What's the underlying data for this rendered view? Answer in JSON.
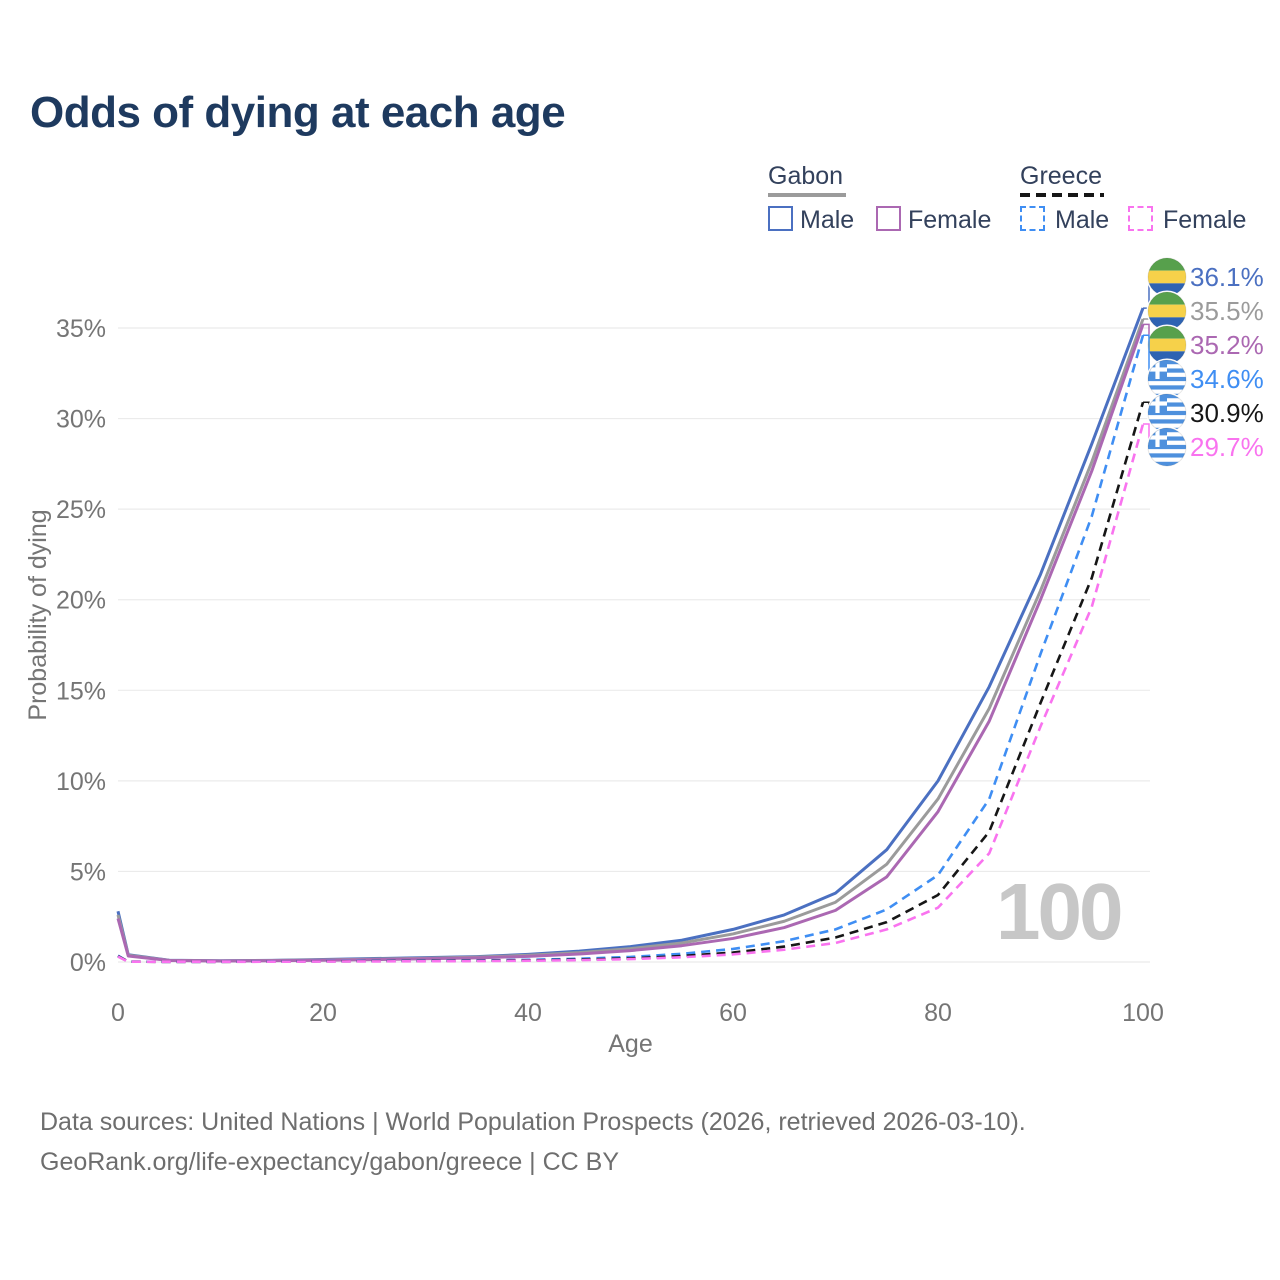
{
  "title": "Odds of dying at each age",
  "legend": {
    "groups": [
      {
        "label": "Gabon",
        "line_style": "solid",
        "line_color": "#9b9b9b",
        "items": [
          {
            "label": "Male",
            "color": "#4b70c1",
            "dashed": false
          },
          {
            "label": "Female",
            "color": "#ab68b2",
            "dashed": false
          }
        ]
      },
      {
        "label": "Greece",
        "line_style": "dashed",
        "line_color": "#161616",
        "items": [
          {
            "label": "Male",
            "color": "#3f8ef3",
            "dashed": true
          },
          {
            "label": "Female",
            "color": "#f973ef",
            "dashed": true
          }
        ]
      }
    ]
  },
  "chart_data": {
    "type": "line",
    "title": "Odds of dying at each age",
    "xlabel": "Age",
    "ylabel": "Probability of dying",
    "watermark": "100",
    "grid": "horizontal",
    "xlim": [
      0,
      100
    ],
    "ylim_percent": [
      0,
      38
    ],
    "x_ticks": [
      0,
      20,
      40,
      60,
      80,
      100
    ],
    "y_tick_values": [
      0,
      5,
      10,
      15,
      20,
      25,
      30,
      35
    ],
    "y_ticks": [
      "0%",
      "5%",
      "10%",
      "15%",
      "20%",
      "25%",
      "30%",
      "35%"
    ],
    "x": [
      0,
      1,
      5,
      10,
      15,
      20,
      25,
      30,
      35,
      40,
      45,
      50,
      55,
      60,
      65,
      70,
      75,
      80,
      85,
      90,
      95,
      100
    ],
    "series": [
      {
        "id": "gabon-male",
        "name": "Gabon — Male",
        "color": "#4b70c1",
        "dashed": false,
        "flag": "gabon",
        "end_label": "36.1%",
        "values": [
          2.8,
          0.4,
          0.1,
          0.07,
          0.09,
          0.14,
          0.19,
          0.24,
          0.3,
          0.42,
          0.6,
          0.85,
          1.2,
          1.8,
          2.6,
          3.8,
          6.2,
          10.0,
          15.2,
          21.4,
          28.6,
          36.1
        ]
      },
      {
        "id": "gabon-both",
        "name": "Gabon — Both sexes",
        "color": "#9b9b9b",
        "dashed": false,
        "flag": "gabon",
        "end_label": "35.5%",
        "values": [
          2.6,
          0.37,
          0.09,
          0.06,
          0.08,
          0.12,
          0.16,
          0.21,
          0.27,
          0.37,
          0.52,
          0.74,
          1.05,
          1.55,
          2.25,
          3.3,
          5.4,
          9.0,
          14.0,
          20.5,
          27.6,
          35.5
        ]
      },
      {
        "id": "gabon-female",
        "name": "Gabon — Female",
        "color": "#ab68b2",
        "dashed": false,
        "flag": "gabon",
        "end_label": "35.2%",
        "values": [
          2.4,
          0.33,
          0.08,
          0.055,
          0.07,
          0.1,
          0.13,
          0.18,
          0.23,
          0.31,
          0.44,
          0.63,
          0.9,
          1.3,
          1.9,
          2.85,
          4.7,
          8.3,
          13.3,
          20.0,
          27.1,
          35.2
        ]
      },
      {
        "id": "greece-male",
        "name": "Greece — Male",
        "color": "#3f8ef3",
        "dashed": true,
        "flag": "greece",
        "end_label": "34.6%",
        "values": [
          0.35,
          0.02,
          0.01,
          0.012,
          0.03,
          0.05,
          0.06,
          0.07,
          0.09,
          0.12,
          0.18,
          0.28,
          0.45,
          0.72,
          1.15,
          1.8,
          2.9,
          4.8,
          9.0,
          17.0,
          24.6,
          34.6
        ]
      },
      {
        "id": "greece-both",
        "name": "Greece — Both sexes",
        "color": "#161616",
        "dashed": true,
        "flag": "greece",
        "end_label": "30.9%",
        "values": [
          0.32,
          0.018,
          0.009,
          0.01,
          0.02,
          0.035,
          0.045,
          0.055,
          0.07,
          0.09,
          0.13,
          0.2,
          0.33,
          0.52,
          0.85,
          1.35,
          2.2,
          3.7,
          7.2,
          14.3,
          21.2,
          30.9
        ]
      },
      {
        "id": "greece-female",
        "name": "Greece — Female",
        "color": "#f973ef",
        "dashed": true,
        "flag": "greece",
        "end_label": "29.7%",
        "values": [
          0.3,
          0.016,
          0.008,
          0.009,
          0.015,
          0.025,
          0.032,
          0.04,
          0.05,
          0.07,
          0.1,
          0.16,
          0.26,
          0.42,
          0.68,
          1.05,
          1.8,
          3.0,
          6.0,
          13.0,
          19.6,
          29.7
        ]
      }
    ],
    "flag_colors": {
      "gabon_green": "#57a04c",
      "gabon_yellow": "#f6d14a",
      "gabon_blue": "#2e63b2",
      "greece_blue": "#4e90dd",
      "greece_white": "#ffffff"
    }
  },
  "footer": {
    "line1": "Data sources: United Nations | World Population Prospects (2026, retrieved 2026-03-10).",
    "line2": "GeoRank.org/life-expectancy/gabon/greece | CC BY"
  }
}
